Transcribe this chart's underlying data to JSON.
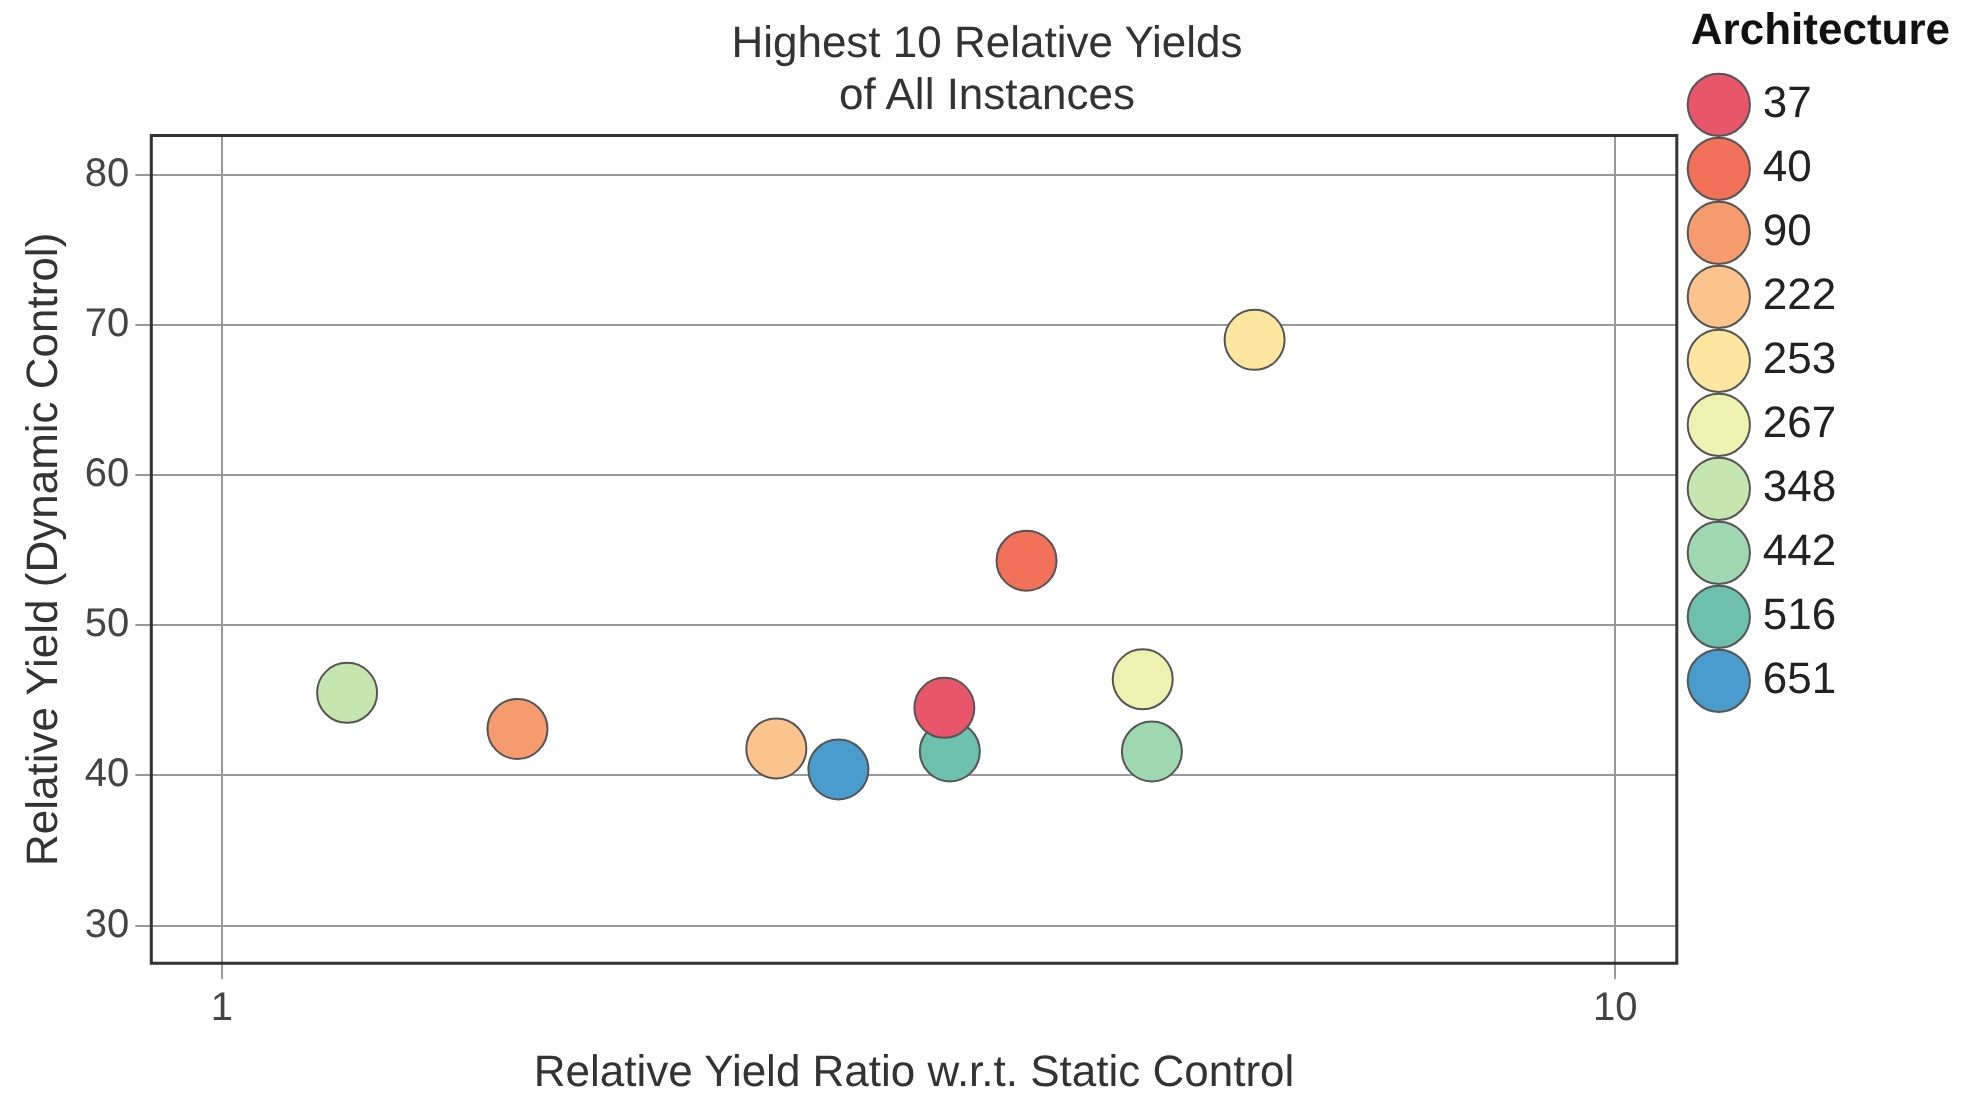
{
  "chart_data": {
    "type": "scatter",
    "title": "Highest 10 Relative Yields\nof All Instances",
    "xlabel": "Relative Yield Ratio w.r.t. Static Control",
    "ylabel": "Relative Yield (Dynamic Control)",
    "legend_title": "Architecture",
    "log": "x",
    "xlim": [
      0.89,
      11.07
    ],
    "xticks": [
      1,
      10
    ],
    "ylim": [
      27.5,
      82.6
    ],
    "yticks": [
      30,
      40,
      50,
      60,
      70,
      80
    ],
    "grid": true,
    "legend": "right",
    "marker": "circle",
    "series": [
      {
        "name": "37",
        "color": "#e8566b",
        "x": [
          3.3
        ],
        "values": [
          44.5
        ]
      },
      {
        "name": "40",
        "color": "#f07058",
        "x": [
          3.78
        ],
        "values": [
          54.3
        ]
      },
      {
        "name": "90",
        "color": "#f59b6e",
        "x": [
          1.63
        ],
        "values": [
          43.1
        ]
      },
      {
        "name": "222",
        "color": "#fbc48d",
        "x": [
          2.5
        ],
        "values": [
          41.8
        ]
      },
      {
        "name": "253",
        "color": "#fde7a0",
        "x": [
          5.51
        ],
        "values": [
          69.0
        ]
      },
      {
        "name": "267",
        "color": "#eef2b0",
        "x": [
          4.58
        ],
        "values": [
          46.4
        ]
      },
      {
        "name": "348",
        "color": "#c6e6b0",
        "x": [
          1.23
        ],
        "values": [
          45.5
        ]
      },
      {
        "name": "442",
        "color": "#9fd8b0",
        "x": [
          4.65
        ],
        "values": [
          41.6
        ]
      },
      {
        "name": "516",
        "color": "#6cc0ad",
        "x": [
          3.33
        ],
        "values": [
          41.6
        ]
      },
      {
        "name": "651",
        "color": "#4a9ccc",
        "x": [
          2.77
        ],
        "values": [
          40.4
        ]
      }
    ]
  }
}
